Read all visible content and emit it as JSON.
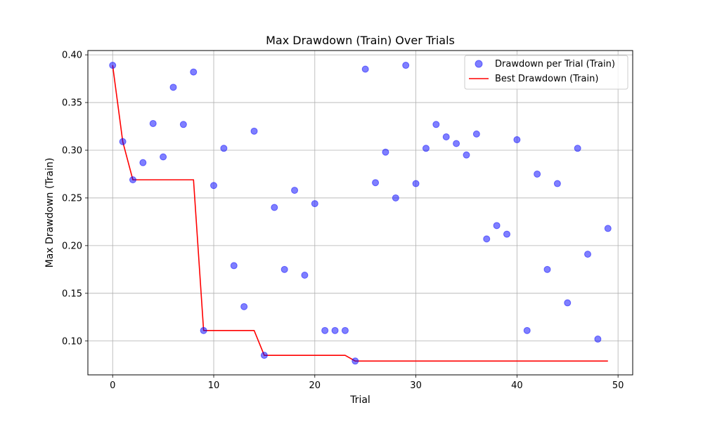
{
  "chart_data": {
    "type": "scatter",
    "title": "Max Drawdown (Train) Over Trials",
    "xlabel": "Trial",
    "ylabel": "Max Drawdown (Train)",
    "xlim": [
      -2.45,
      51.45
    ],
    "ylim": [
      0.0645,
      0.4045
    ],
    "xticks": [
      0,
      10,
      20,
      30,
      40,
      50
    ],
    "xtick_labels": [
      "0",
      "10",
      "20",
      "30",
      "40",
      "50"
    ],
    "yticks": [
      0.1,
      0.15,
      0.2,
      0.25,
      0.3,
      0.35,
      0.4
    ],
    "ytick_labels": [
      "0.10",
      "0.15",
      "0.20",
      "0.25",
      "0.30",
      "0.35",
      "0.40"
    ],
    "grid": true,
    "legend_position": "top-right",
    "series": [
      {
        "name": "Drawdown per Trial (Train)",
        "kind": "scatter",
        "color": "#0000ff",
        "alpha": 0.5,
        "x": [
          0,
          1,
          2,
          3,
          4,
          5,
          6,
          7,
          8,
          9,
          10,
          11,
          12,
          13,
          14,
          15,
          16,
          17,
          18,
          19,
          20,
          21,
          22,
          23,
          24,
          25,
          26,
          27,
          28,
          29,
          30,
          31,
          32,
          33,
          34,
          35,
          36,
          37,
          38,
          39,
          40,
          41,
          42,
          43,
          44,
          45,
          46,
          47,
          48,
          49
        ],
        "y": [
          0.389,
          0.309,
          0.269,
          0.287,
          0.328,
          0.293,
          0.366,
          0.327,
          0.382,
          0.111,
          0.263,
          0.302,
          0.179,
          0.136,
          0.32,
          0.085,
          0.24,
          0.175,
          0.258,
          0.169,
          0.244,
          0.111,
          0.111,
          0.111,
          0.079,
          0.385,
          0.266,
          0.298,
          0.25,
          0.389,
          0.265,
          0.302,
          0.327,
          0.314,
          0.307,
          0.295,
          0.317,
          0.207,
          0.221,
          0.212,
          0.311,
          0.111,
          0.275,
          0.175,
          0.265,
          0.14,
          0.302,
          0.191,
          0.102,
          0.218
        ]
      },
      {
        "name": "Best Drawdown (Train)",
        "kind": "line",
        "color": "#ff0000",
        "x": [
          0,
          1,
          2,
          3,
          4,
          5,
          6,
          7,
          8,
          9,
          10,
          11,
          12,
          13,
          14,
          15,
          16,
          17,
          18,
          19,
          20,
          21,
          22,
          23,
          24,
          25,
          26,
          27,
          28,
          29,
          30,
          31,
          32,
          33,
          34,
          35,
          36,
          37,
          38,
          39,
          40,
          41,
          42,
          43,
          44,
          45,
          46,
          47,
          48,
          49
        ],
        "y": [
          0.389,
          0.309,
          0.269,
          0.269,
          0.269,
          0.269,
          0.269,
          0.269,
          0.269,
          0.111,
          0.111,
          0.111,
          0.111,
          0.111,
          0.111,
          0.085,
          0.085,
          0.085,
          0.085,
          0.085,
          0.085,
          0.085,
          0.085,
          0.085,
          0.079,
          0.079,
          0.079,
          0.079,
          0.079,
          0.079,
          0.079,
          0.079,
          0.079,
          0.079,
          0.079,
          0.079,
          0.079,
          0.079,
          0.079,
          0.079,
          0.079,
          0.079,
          0.079,
          0.079,
          0.079,
          0.079,
          0.079,
          0.079,
          0.079,
          0.079
        ]
      }
    ]
  }
}
